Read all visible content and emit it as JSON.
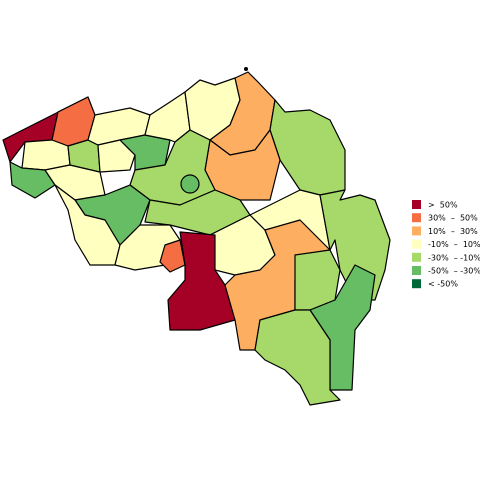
{
  "legend": {
    "items": [
      {
        "label": ">  50%",
        "color": "#a50026"
      },
      {
        "label": "30%  –  50%",
        "color": "#f46d43"
      },
      {
        "label": "10%  –  30%",
        "color": "#fdae61"
      },
      {
        "label": "-10%  –  10%",
        "color": "#ffffbf"
      },
      {
        "label": "-30%  – -10%",
        "color": "#a6d96a"
      },
      {
        "label": "-50%  – -30%",
        "color": "#66bd63"
      },
      {
        "label": "< -50%",
        "color": "#006837"
      }
    ]
  }
}
